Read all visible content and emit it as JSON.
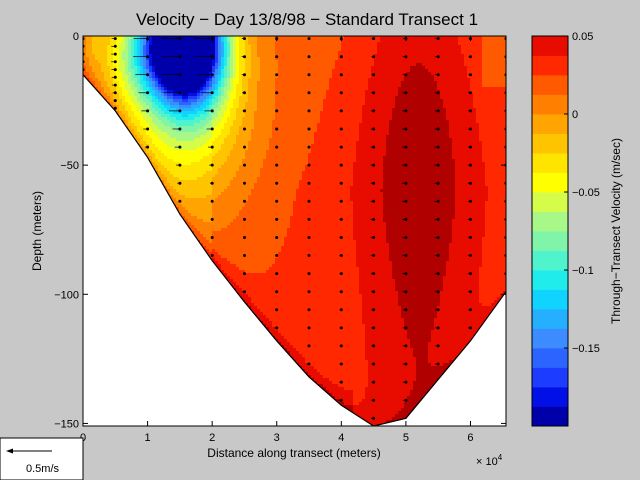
{
  "chart_data": {
    "type": "heatmap",
    "title": "Velocity − Day 13/8/98 − Standard Transect 1",
    "xlabel": "Distance along transect (meters)",
    "x_multiplier": "× 10",
    "x_multiplier_exp": "4",
    "ylabel": "Depth (meters)",
    "xlim": [
      0,
      65500
    ],
    "ylim": [
      -151,
      0
    ],
    "xticks": [
      0,
      10000,
      20000,
      30000,
      40000,
      50000,
      60000
    ],
    "xtick_labels": [
      "0",
      "1",
      "2",
      "3",
      "4",
      "5",
      "6"
    ],
    "yticks": [
      0,
      -50,
      -100,
      -150
    ],
    "ytick_labels": [
      "0",
      "−50",
      "−100",
      "−150"
    ],
    "colorbar": {
      "label": "Through−Transect Velocity (m/sec)",
      "range": [
        -0.2,
        0.05
      ],
      "ticks": [
        0.05,
        0,
        -0.05,
        -0.1,
        -0.15
      ],
      "tick_labels": [
        "0.05",
        "0",
        "−0.05",
        "−0.1",
        "−0.15"
      ],
      "levels": [
        -0.2,
        -0.1875,
        -0.175,
        -0.1625,
        -0.15,
        -0.1375,
        -0.125,
        -0.1125,
        -0.1,
        -0.0875,
        -0.075,
        -0.0625,
        -0.05,
        -0.0375,
        -0.025,
        -0.0125,
        0,
        0.0125,
        0.025,
        0.0375,
        0.05
      ],
      "colors": [
        "#0000aa",
        "#0010e6",
        "#1c3cff",
        "#2c64ff",
        "#3c8cff",
        "#24b0ff",
        "#10d4ff",
        "#20ecec",
        "#50f4cc",
        "#80f4a8",
        "#a8f888",
        "#d4fc48",
        "#ffff00",
        "#ffe400",
        "#ffc400",
        "#ffa400",
        "#ff8000",
        "#ff5a00",
        "#ff2800",
        "#e80c00",
        "#b00000"
      ]
    },
    "bottom_profile": [
      [
        0,
        -15
      ],
      [
        5000,
        -29
      ],
      [
        10000,
        -47
      ],
      [
        15000,
        -69
      ],
      [
        20000,
        -87
      ],
      [
        25000,
        -103
      ],
      [
        30000,
        -118
      ],
      [
        35000,
        -132
      ],
      [
        40000,
        -143
      ],
      [
        45000,
        -151
      ],
      [
        50000,
        -148
      ],
      [
        55000,
        -133
      ],
      [
        60000,
        -118
      ],
      [
        65500,
        -99
      ]
    ],
    "stations_x": [
      0,
      5000,
      10000,
      15000,
      20000,
      25000,
      30000,
      35000,
      40000,
      45000,
      50000,
      55000,
      60000,
      65500
    ],
    "velocity_field_note": "",
    "velocity_samples": [
      {
        "x": 15000,
        "z": -2,
        "v": -0.17
      },
      {
        "x": 10000,
        "z": -5,
        "v": -0.06
      },
      {
        "x": 20000,
        "z": -5,
        "v": -0.08
      },
      {
        "x": 50000,
        "z": -40,
        "v": 0.04
      }
    ],
    "scale_arrow": {
      "label": "0.5m/s",
      "value": 0.5
    }
  }
}
